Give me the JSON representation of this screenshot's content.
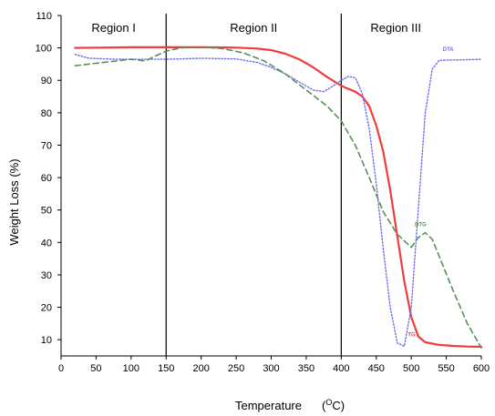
{
  "chart_data": {
    "type": "line",
    "title": "",
    "xlabel": "Temperature",
    "xlabel_unit_prefix": "(",
    "xlabel_unit_super": "O",
    "xlabel_unit_suffix": "C)",
    "ylabel": "Weight Loss (%)",
    "xlim": [
      0,
      600
    ],
    "ylim": [
      5,
      110
    ],
    "xticks": [
      0,
      50,
      100,
      150,
      200,
      250,
      300,
      350,
      400,
      450,
      500,
      550,
      600
    ],
    "yticks": [
      10,
      20,
      30,
      40,
      50,
      60,
      70,
      80,
      90,
      100,
      110
    ],
    "grid": false,
    "region_dividers": [
      150,
      400
    ],
    "regions": [
      {
        "label": "Region I",
        "x_center": 75
      },
      {
        "label": "Region II",
        "x_center": 275
      },
      {
        "label": "Region III",
        "x_center": 500
      }
    ],
    "series": [
      {
        "name": "TG",
        "color": "#f03c3c",
        "style": "solid",
        "label_pos": [
          495,
          11
        ],
        "x": [
          20,
          60,
          100,
          150,
          200,
          250,
          280,
          300,
          320,
          340,
          360,
          380,
          395,
          405,
          420,
          430,
          440,
          450,
          460,
          470,
          480,
          490,
          500,
          510,
          520,
          540,
          560,
          580,
          600
        ],
        "y": [
          100,
          100.1,
          100.2,
          100.2,
          100.2,
          100.1,
          99.8,
          99.3,
          98.2,
          96.5,
          94.0,
          91.0,
          89.0,
          87.8,
          86.5,
          85.0,
          82.0,
          76.0,
          68.0,
          56.0,
          42.0,
          28.0,
          17.0,
          11.0,
          9.2,
          8.4,
          8.1,
          7.9,
          7.8
        ]
      },
      {
        "name": "DTA",
        "color": "#6f6ff0",
        "style": "dotted",
        "label_pos": [
          545,
          99
        ],
        "x": [
          20,
          40,
          80,
          120,
          150,
          200,
          250,
          280,
          300,
          320,
          340,
          360,
          375,
          390,
          400,
          410,
          420,
          430,
          440,
          450,
          460,
          470,
          480,
          490,
          500,
          510,
          520,
          530,
          540,
          570,
          600
        ],
        "y": [
          98.0,
          96.8,
          96.5,
          96.5,
          96.5,
          96.8,
          96.6,
          95.5,
          94.0,
          92.0,
          89.5,
          87.0,
          86.5,
          88.5,
          90.0,
          91.2,
          90.8,
          86.0,
          75.0,
          58.0,
          38.0,
          20.0,
          9.0,
          8.0,
          20.0,
          50.0,
          80.0,
          93.5,
          96.2,
          96.3,
          96.5
        ]
      },
      {
        "name": "DTG",
        "color": "#5a8f5a",
        "style": "dashed",
        "label_pos": [
          505,
          45
        ],
        "x": [
          20,
          60,
          100,
          120,
          135,
          150,
          170,
          200,
          230,
          260,
          290,
          320,
          350,
          380,
          400,
          420,
          440,
          460,
          480,
          500,
          510,
          520,
          530,
          545,
          560,
          580,
          600
        ],
        "y": [
          94.5,
          95.5,
          96.5,
          96.0,
          97.5,
          99.0,
          100.0,
          100.3,
          99.8,
          98.5,
          96.0,
          92.0,
          87.0,
          82.0,
          77.5,
          70.0,
          60.0,
          49.5,
          42.5,
          38.5,
          41.5,
          43.0,
          41.0,
          33.0,
          25.0,
          15.0,
          7.5
        ]
      }
    ]
  }
}
